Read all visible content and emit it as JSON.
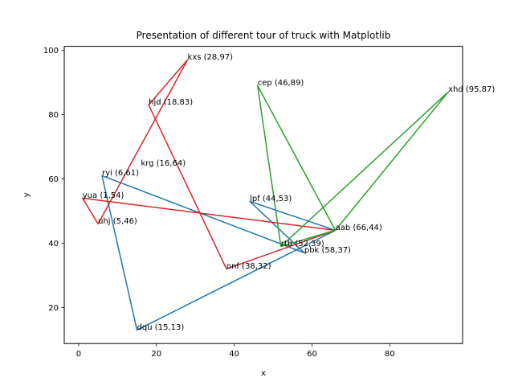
{
  "chart_data": {
    "type": "line",
    "title": "Presentation of different tour of truck with Matplotlib",
    "xlabel": "x",
    "ylabel": "y",
    "xlim": [
      -3.7,
      98.7
    ],
    "ylim": [
      8.8,
      101.2
    ],
    "xticks": [
      0,
      20,
      40,
      60,
      80
    ],
    "yticks": [
      20,
      40,
      60,
      80,
      100
    ],
    "grid": false,
    "points": [
      {
        "name": "kxs",
        "x": 28,
        "y": 97,
        "label": "kxs (28,97)"
      },
      {
        "name": "hjd",
        "x": 18,
        "y": 83,
        "label": "hjd (18,83)"
      },
      {
        "name": "krg",
        "x": 16,
        "y": 64,
        "label": "krg (16,64)"
      },
      {
        "name": "ryi",
        "x": 6,
        "y": 61,
        "label": "ryi (6,61)"
      },
      {
        "name": "yua",
        "x": 1,
        "y": 54,
        "label": "yua (1,54)"
      },
      {
        "name": "uhj",
        "x": 5,
        "y": 46,
        "label": "uhj (5,46)"
      },
      {
        "name": "cep",
        "x": 46,
        "y": 89,
        "label": "cep (46,89)"
      },
      {
        "name": "xhd",
        "x": 95,
        "y": 87,
        "label": "xhd (95,87)"
      },
      {
        "name": "lpf",
        "x": 44,
        "y": 53,
        "label": "lpf (44,53)"
      },
      {
        "name": "aab",
        "x": 66,
        "y": 44,
        "label": "aab (66,44)"
      },
      {
        "name": "rtb",
        "x": 52,
        "y": 39,
        "label": "rtb (52,39)"
      },
      {
        "name": "pbk",
        "x": 58,
        "y": 37,
        "label": "pbk (58,37)"
      },
      {
        "name": "onf",
        "x": 38,
        "y": 32,
        "label": "onf (38,32)"
      },
      {
        "name": "dqu",
        "x": 15,
        "y": 13,
        "label": "dqu (15,13)"
      }
    ],
    "series": [
      {
        "color": "#1f77b4",
        "x": [
          66,
          44,
          58,
          6,
          15,
          66
        ],
        "y": [
          44,
          53,
          37,
          61,
          13,
          44
        ]
      },
      {
        "color": "#d62728",
        "x": [
          66,
          38,
          18,
          28,
          5,
          1,
          66
        ],
        "y": [
          44,
          32,
          83,
          97,
          46,
          54,
          44
        ]
      },
      {
        "color": "#2ca02c",
        "x": [
          66,
          52,
          46,
          66,
          95,
          52,
          66
        ],
        "y": [
          44,
          39,
          89,
          44,
          87,
          39,
          44
        ]
      }
    ]
  }
}
